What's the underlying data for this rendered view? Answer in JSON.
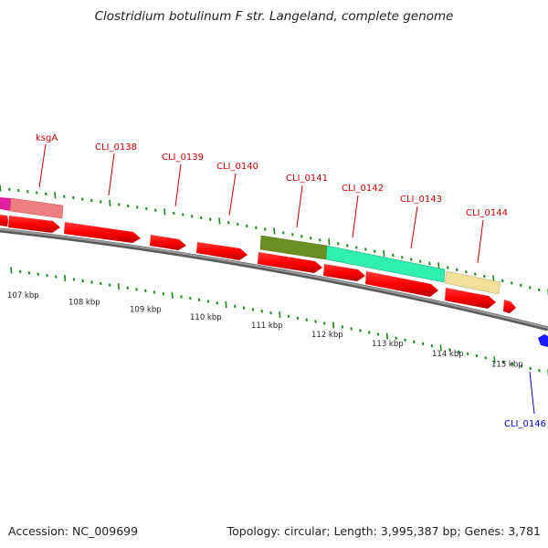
{
  "header": {
    "title": "Clostridium botulinum F str. Langeland, complete genome"
  },
  "footer": {
    "accession": "Accession: NC_009699",
    "summary": "Topology: circular; Length: 3,995,387 bp; Genes: 3,781"
  },
  "colors": {
    "backbone": "#808080",
    "tick": "#1a8a1a",
    "forward_cds": "#ff1a1a",
    "label_red": "#cc0000",
    "label_blue": "#0000cc",
    "gene_magenta": "#e020a0",
    "gene_pink": "#f08080",
    "gene_olive": "#6b8e23",
    "gene_aqua": "#20f0a0",
    "gene_khaki": "#f0e09a",
    "gene_blue": "#1a1aff"
  },
  "gene_labels": [
    {
      "id": "ksgA",
      "color": "red"
    },
    {
      "id": "CLI_0138",
      "color": "red"
    },
    {
      "id": "CLI_0139",
      "color": "red"
    },
    {
      "id": "CLI_0140",
      "color": "red"
    },
    {
      "id": "CLI_0141",
      "color": "red"
    },
    {
      "id": "CLI_0142",
      "color": "red"
    },
    {
      "id": "CLI_0143",
      "color": "red"
    },
    {
      "id": "CLI_0144",
      "color": "red"
    },
    {
      "id": "CLI_0146",
      "color": "blue"
    }
  ],
  "scale_labels": [
    "107 kbp",
    "108 kbp",
    "109 kbp",
    "110 kbp",
    "111 kbp",
    "112 kbp",
    "113 kbp",
    "114 kbp",
    "115 kbp"
  ]
}
